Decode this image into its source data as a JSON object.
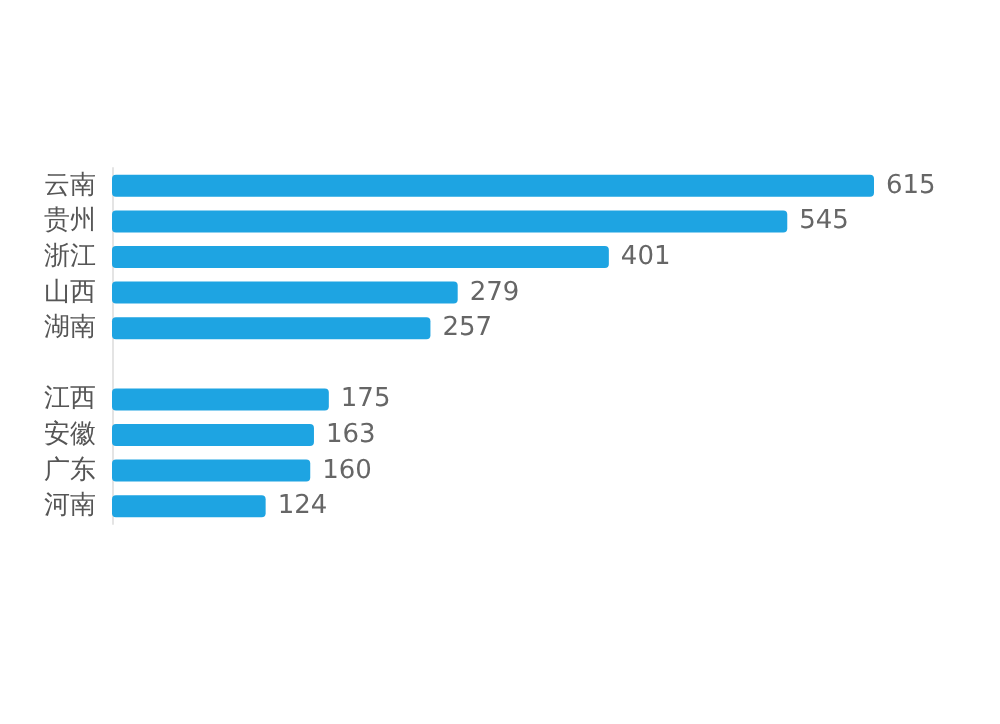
{
  "chart_data": {
    "type": "bar",
    "orientation": "horizontal",
    "categories": [
      "云南",
      "贵州",
      "浙江",
      "山西",
      "湖南",
      null,
      "江西",
      "安徽",
      "广东",
      "河南"
    ],
    "values": [
      615,
      545,
      401,
      279,
      257,
      null,
      175,
      163,
      160,
      124
    ],
    "color": "#1ea4e2",
    "data_labels": true
  }
}
